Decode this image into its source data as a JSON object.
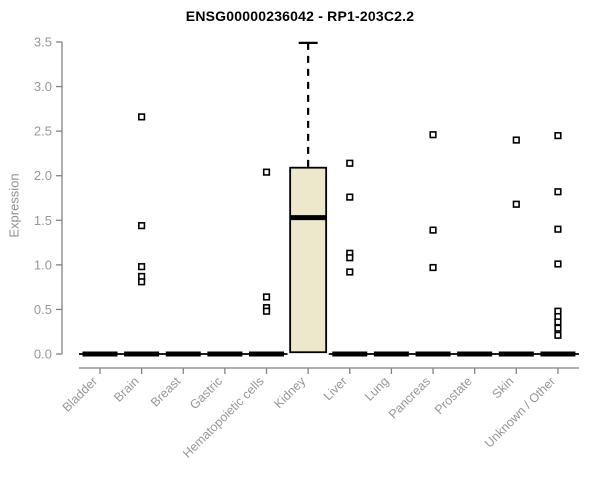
{
  "title": "ENSG00000236042 - RP1-203C2.2",
  "chart_data": {
    "type": "box",
    "title": "ENSG00000236042 - RP1-203C2.2",
    "xlabel": "",
    "ylabel": "Expression",
    "ylim": [
      0,
      3.5
    ],
    "ytick_step": 0.5,
    "ytick_labels": [
      "0.0",
      "0.5",
      "1.0",
      "1.5",
      "2.0",
      "2.5",
      "3.0",
      "3.5"
    ],
    "grid": false,
    "legend": null,
    "categories": [
      "Bladder",
      "Brain",
      "Breast",
      "Gastric",
      "Hematopoietic cells",
      "Kidney",
      "Liver",
      "Lung",
      "Pancreas",
      "Prostate",
      "Skin",
      "Unknown / Other"
    ],
    "boxes": [
      {
        "category": "Bladder",
        "q1": 0,
        "median": 0,
        "q3": 0,
        "whisker_low": 0,
        "whisker_high": 0,
        "outliers": []
      },
      {
        "category": "Brain",
        "q1": 0,
        "median": 0,
        "q3": 0,
        "whisker_low": 0,
        "whisker_high": 0,
        "outliers": [
          2.66,
          1.44,
          0.98,
          0.87,
          0.81
        ]
      },
      {
        "category": "Breast",
        "q1": 0,
        "median": 0,
        "q3": 0,
        "whisker_low": 0,
        "whisker_high": 0,
        "outliers": []
      },
      {
        "category": "Gastric",
        "q1": 0,
        "median": 0,
        "q3": 0,
        "whisker_low": 0,
        "whisker_high": 0,
        "outliers": []
      },
      {
        "category": "Hematopoietic cells",
        "q1": 0,
        "median": 0,
        "q3": 0,
        "whisker_low": 0,
        "whisker_high": 0,
        "outliers": [
          2.04,
          0.64,
          0.52,
          0.48
        ]
      },
      {
        "category": "Kidney",
        "q1": 0.02,
        "median": 1.53,
        "q3": 2.09,
        "whisker_low": 0.02,
        "whisker_high": 3.49,
        "outliers": []
      },
      {
        "category": "Liver",
        "q1": 0,
        "median": 0,
        "q3": 0,
        "whisker_low": 0,
        "whisker_high": 0,
        "outliers": [
          2.14,
          1.76,
          1.13,
          1.08,
          0.92
        ]
      },
      {
        "category": "Lung",
        "q1": 0,
        "median": 0,
        "q3": 0,
        "whisker_low": 0,
        "whisker_high": 0,
        "outliers": []
      },
      {
        "category": "Pancreas",
        "q1": 0,
        "median": 0,
        "q3": 0,
        "whisker_low": 0,
        "whisker_high": 0,
        "outliers": [
          2.46,
          1.39,
          0.97
        ]
      },
      {
        "category": "Prostate",
        "q1": 0,
        "median": 0,
        "q3": 0,
        "whisker_low": 0,
        "whisker_high": 0,
        "outliers": []
      },
      {
        "category": "Skin",
        "q1": 0,
        "median": 0,
        "q3": 0,
        "whisker_low": 0,
        "whisker_high": 0,
        "outliers": [
          2.4,
          1.68
        ]
      },
      {
        "category": "Unknown / Other",
        "q1": 0,
        "median": 0,
        "q3": 0,
        "whisker_low": 0,
        "whisker_high": 0,
        "outliers": [
          2.45,
          1.82,
          1.4,
          1.01,
          0.48,
          0.42,
          0.36,
          0.29,
          0.21
        ]
      }
    ],
    "colors": {
      "background": "#FFFFFF",
      "box_fill": "#EDE8CC",
      "box_border": "#000000",
      "median": "#000000",
      "whisker": "#000000",
      "outlier_fill": "#FFFFFF",
      "outlier_border": "#000000",
      "axis_line": "#828282",
      "tick_label": "#979797",
      "title": "#000000"
    }
  }
}
